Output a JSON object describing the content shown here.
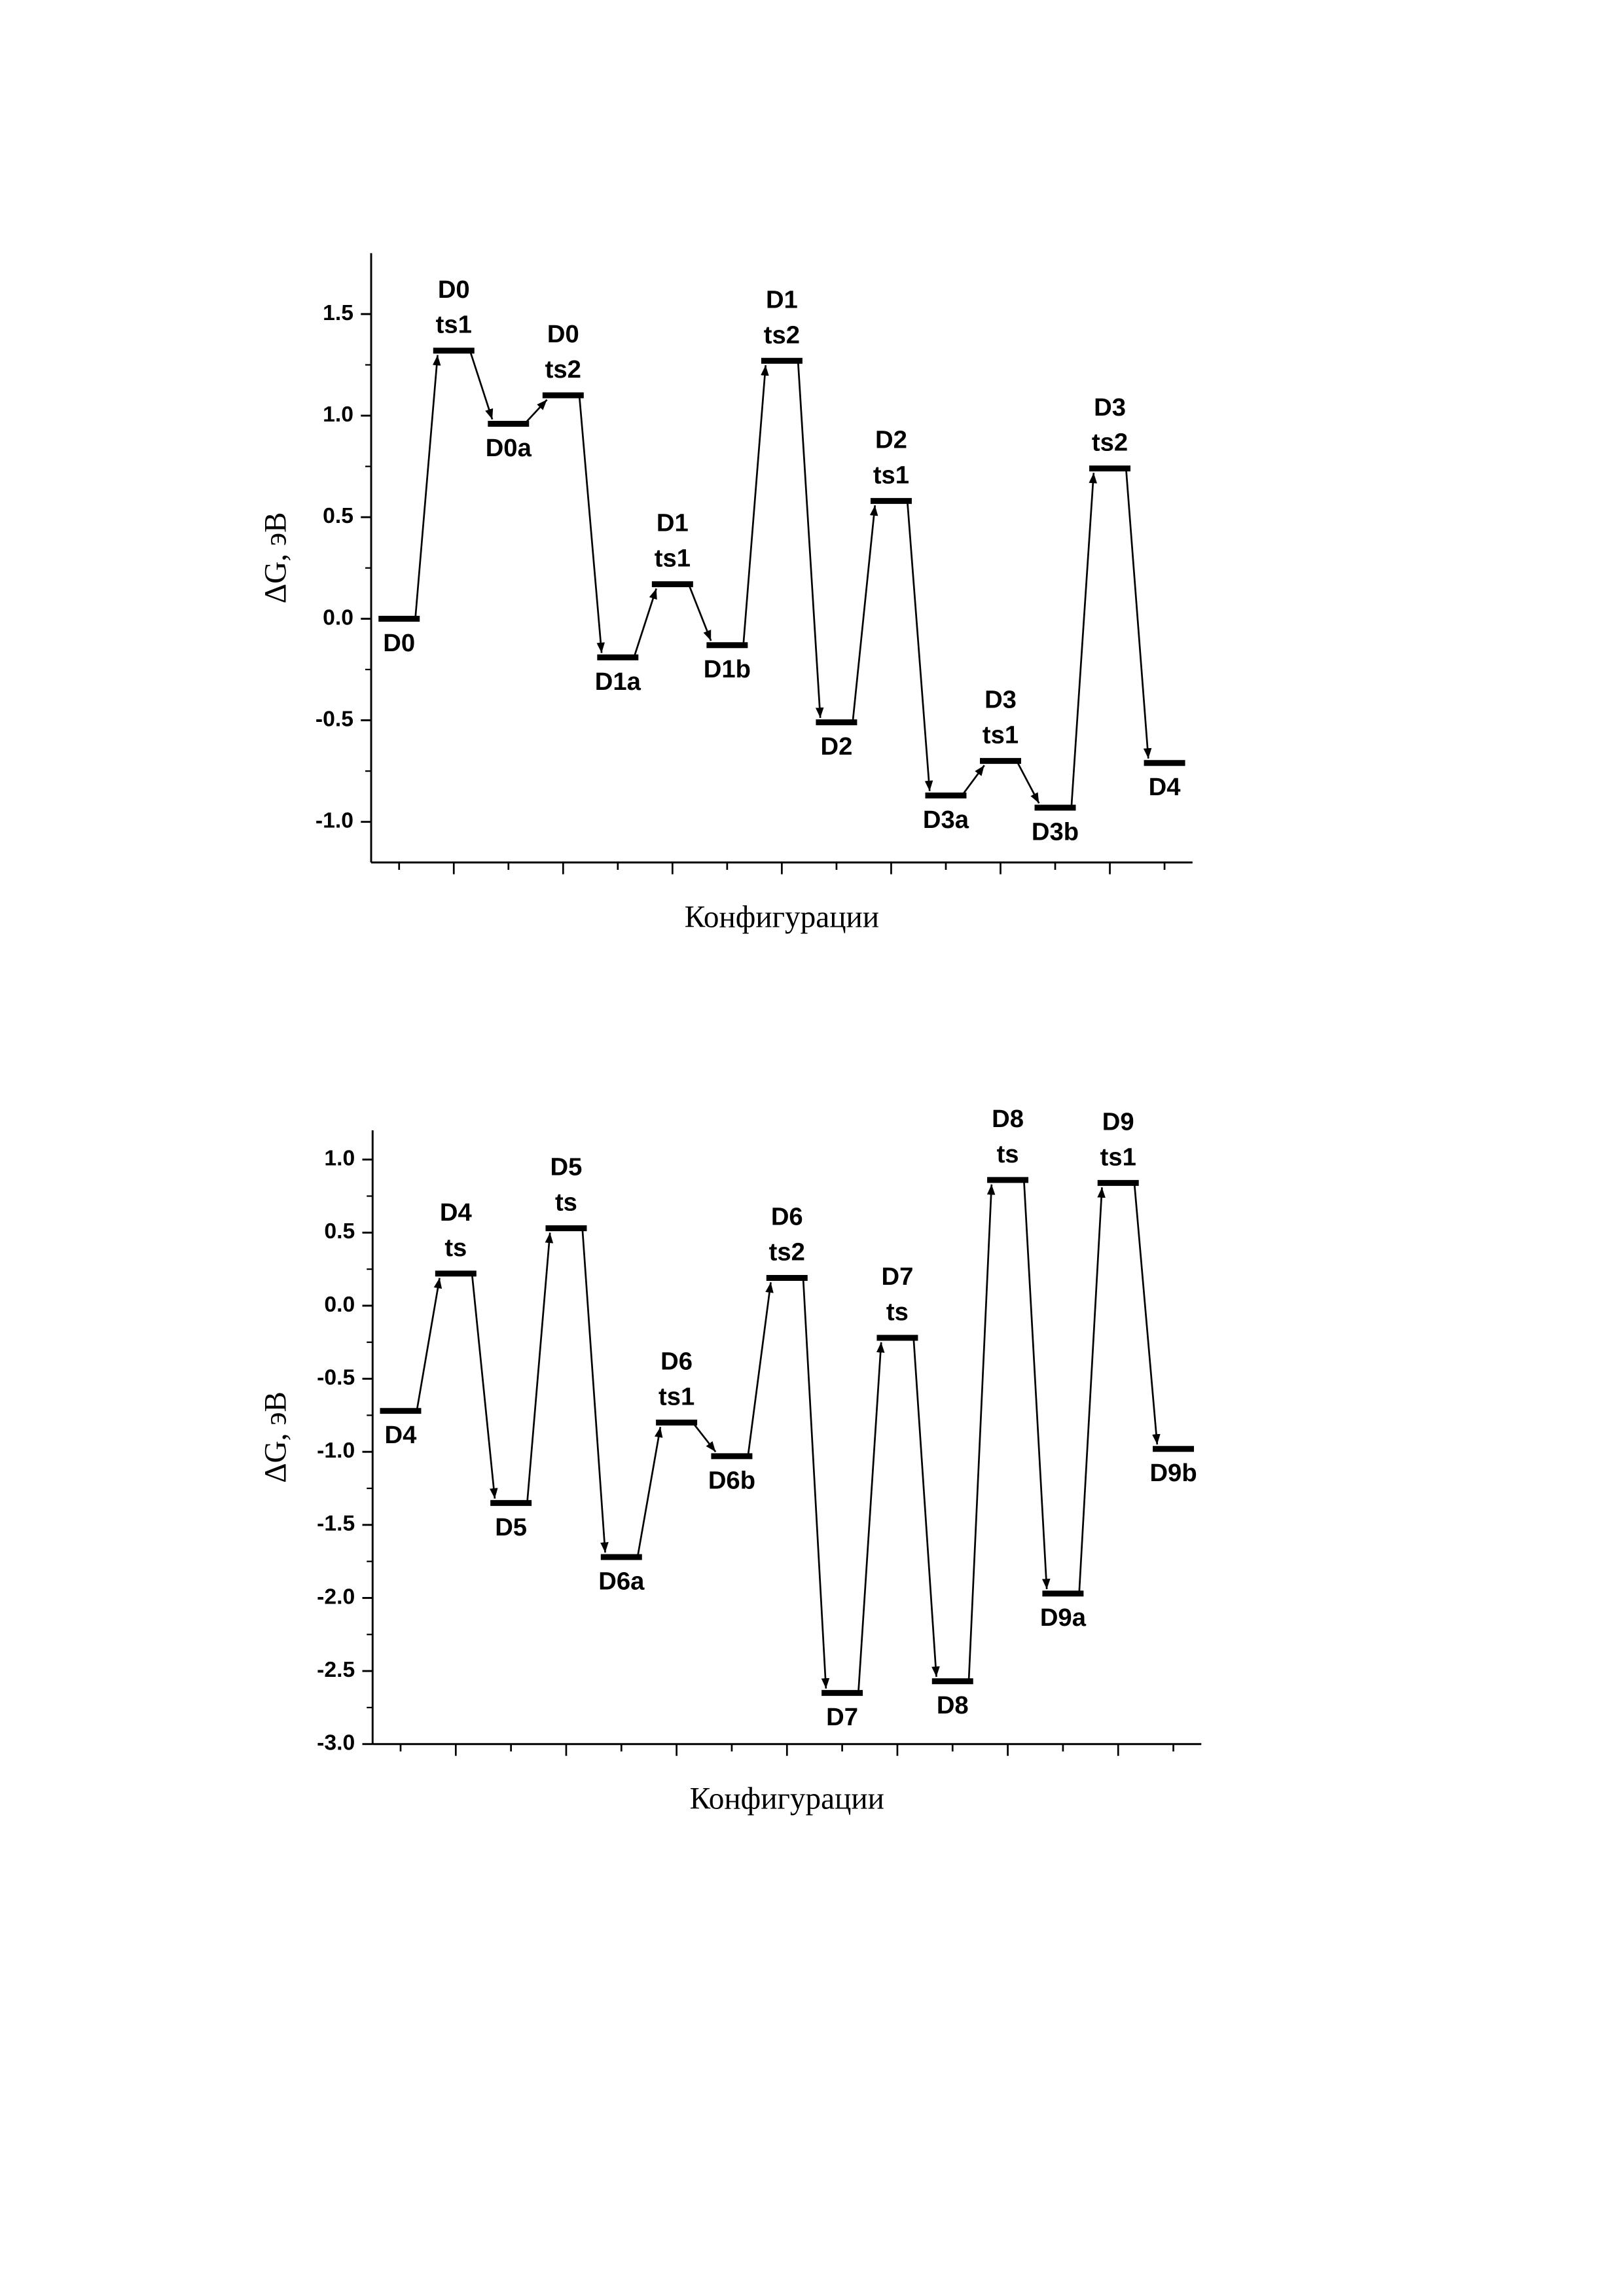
{
  "chart_data": [
    {
      "type": "energy-levels",
      "ylabel": "ΔG, эВ",
      "xlabel": "Конфигурации",
      "categories": [
        [
          "D0"
        ],
        [
          "D0",
          "ts1"
        ],
        [
          "D0a"
        ],
        [
          "D0",
          "ts2"
        ],
        [
          "D1a"
        ],
        [
          "D1",
          "ts1"
        ],
        [
          "D1b"
        ],
        [
          "D1",
          "ts2"
        ],
        [
          "D2"
        ],
        [
          "D2",
          "ts1"
        ],
        [
          "D3a"
        ],
        [
          "D3",
          "ts1"
        ],
        [
          "D3b"
        ],
        [
          "D3",
          "ts2"
        ],
        [
          "D4"
        ]
      ],
      "values": [
        0.0,
        1.32,
        0.96,
        1.1,
        -0.19,
        0.17,
        -0.13,
        1.27,
        -0.51,
        0.58,
        -0.87,
        -0.7,
        -0.93,
        0.74,
        -0.71
      ],
      "color": "#000000",
      "ylim": [
        -1.2,
        1.8
      ],
      "yticks": [
        {
          "value": -1.0,
          "label": "-1.0"
        },
        {
          "value": -0.5,
          "label": "-0.5"
        },
        {
          "value": 0.0,
          "label": "0.0"
        },
        0.5,
        {
          "value": 1.0,
          "label": "1.0"
        },
        1.5
      ]
    },
    {
      "type": "energy-levels",
      "ylabel": "ΔG, эВ",
      "xlabel": "Конфигурации",
      "categories": [
        [
          "D4"
        ],
        [
          "D4",
          "ts"
        ],
        [
          "D5"
        ],
        [
          "D5",
          "ts"
        ],
        [
          "D6a"
        ],
        [
          "D6",
          "ts1"
        ],
        [
          "D6b"
        ],
        [
          "D6",
          "ts2"
        ],
        [
          "D7"
        ],
        [
          "D7",
          "ts"
        ],
        [
          "D8"
        ],
        [
          "D8",
          "ts"
        ],
        [
          "D9a"
        ],
        [
          "D9",
          "ts1"
        ],
        [
          "D9b"
        ]
      ],
      "values": [
        -0.72,
        0.22,
        -1.35,
        0.53,
        -1.72,
        -0.8,
        -1.03,
        0.19,
        -2.65,
        -0.22,
        -2.57,
        0.86,
        -1.97,
        0.84,
        -0.98
      ],
      "color": "#000000",
      "ylim": [
        -3.0,
        1.2
      ],
      "yticks": [
        {
          "value": -3.0,
          "label": "-3.0"
        },
        {
          "value": -2.5,
          "label": "-2.5"
        },
        {
          "value": -2.0,
          "label": "-2.0"
        },
        {
          "value": -1.5,
          "label": "-1.5"
        },
        {
          "value": -1.0,
          "label": "-1.0"
        },
        {
          "value": -0.5,
          "label": "-0.5"
        },
        {
          "value": 0.0,
          "label": "0.0"
        },
        0.5,
        {
          "value": 1.0,
          "label": "1.0"
        }
      ]
    }
  ]
}
